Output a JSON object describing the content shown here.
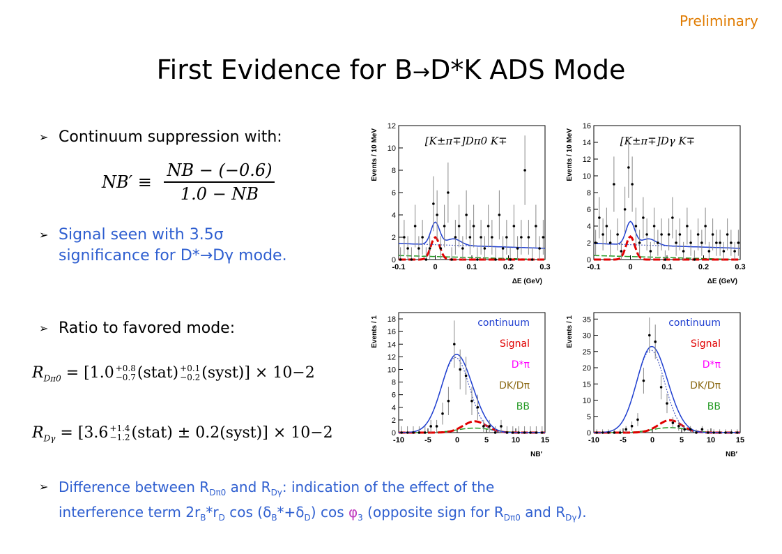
{
  "preliminary": "Preliminary",
  "title": {
    "prefix": "First Evidence for B",
    "arrow": "→",
    "suffix": "D*K ADS Mode"
  },
  "bullet_marker": "➢",
  "bullets": {
    "continuum": "Continuum suppression with:",
    "signal_line1": "Signal seen with 3.5σ",
    "signal_line2_a": "significance for D*",
    "signal_line2_arrow": "→",
    "signal_line2_b": "Dγ mode.",
    "ratio": "Ratio to favored mode:"
  },
  "formula": {
    "lhs": "NB′ ≡",
    "numerator": "NB − (−0.6)",
    "denominator": "1.0 − NB"
  },
  "ratios": [
    {
      "symbol": "R",
      "sub": "Dπ0",
      "value": "1.0",
      "stat_up": "+0.8",
      "stat_down": "−0.7",
      "stat": "(stat)",
      "syst_up": "+0.1",
      "syst_down": "−0.2",
      "syst": "(syst)",
      "scale": "× 10−2"
    },
    {
      "symbol": "R",
      "sub": "Dγ",
      "value": "3.6",
      "stat_up": "+1.4",
      "stat_down": "−1.2",
      "stat": "(stat)",
      "syst_sym": "± 0.2",
      "syst": "(syst)",
      "scale": "× 10−2"
    }
  ],
  "bottom": {
    "l1a": "Difference between R",
    "l1s1": "Dπ0",
    "l1b": " and R",
    "l1s2": "Dγ",
    "l1c": ": indication of the effect of the",
    "l2a": "interference term 2r",
    "l2s1": "B",
    "l2b": "*r",
    "l2s2": "D",
    "l2c": " cos (δ",
    "l2s3": "B",
    "l2d": "*+δ",
    "l2s4": "D",
    "l2e": ") cos ",
    "l2phi": "φ",
    "l2s5": "3",
    "l2f": " (opposite sign for R",
    "l2s6": "Dπ0",
    "l2g": " and R",
    "l2s7": "Dγ",
    "l2h": ")."
  },
  "legend": {
    "continuum": "continuum",
    "signal": "Signal",
    "dstarpi": "D*π",
    "dkdpi": "DK/Dπ",
    "bb": "BB"
  },
  "colors": {
    "accent": "#2f5fd0",
    "orange": "#e07b00",
    "signal": "#e00000",
    "dstarpi": "#ff00ff",
    "dkdpi": "#8b6914",
    "bb": "#229922",
    "fit": "#1f3fd0"
  },
  "chart_data": [
    {
      "type": "scatter",
      "title": "[K±π∓]Dπ0 K∓",
      "xlabel": "ΔE (GeV)",
      "ylabel": "Events / 10 MeV",
      "xlim": [
        -0.1,
        0.3
      ],
      "ylim": [
        0,
        12
      ],
      "xticks": [
        "-0.1",
        "0",
        "0.1",
        "0.2",
        "0.3"
      ],
      "yticks": [
        "0",
        "2",
        "4",
        "6",
        "8",
        "10",
        "12"
      ],
      "x": [
        -0.095,
        -0.085,
        -0.075,
        -0.065,
        -0.055,
        -0.045,
        -0.035,
        -0.025,
        -0.015,
        -0.005,
        0.005,
        0.015,
        0.025,
        0.035,
        0.045,
        0.055,
        0.065,
        0.075,
        0.085,
        0.095,
        0.105,
        0.115,
        0.125,
        0.135,
        0.145,
        0.155,
        0.165,
        0.175,
        0.185,
        0.195,
        0.205,
        0.215,
        0.225,
        0.235,
        0.245,
        0.255,
        0.265,
        0.275,
        0.285,
        0.295
      ],
      "y": [
        0,
        2,
        1,
        0,
        3,
        1,
        2,
        0,
        1,
        5,
        4,
        1,
        3,
        6,
        0,
        2,
        3,
        1,
        4,
        2,
        3,
        0,
        2,
        1,
        3,
        2,
        0,
        4,
        1,
        2,
        0,
        3,
        1,
        2,
        8,
        2,
        0,
        3,
        1,
        2
      ]
    },
    {
      "type": "scatter",
      "title": "[K±π∓]Dγ K∓",
      "xlabel": "ΔE (GeV)",
      "ylabel": "Events / 10 MeV",
      "xlim": [
        -0.1,
        0.3
      ],
      "ylim": [
        0,
        16
      ],
      "xticks": [
        "-0.1",
        "0",
        "0.1",
        "0.2",
        "0.3"
      ],
      "yticks": [
        "0",
        "2",
        "4",
        "6",
        "8",
        "10",
        "12",
        "14",
        "16"
      ],
      "x": [
        -0.095,
        -0.085,
        -0.075,
        -0.065,
        -0.055,
        -0.045,
        -0.035,
        -0.025,
        -0.015,
        -0.005,
        0.005,
        0.015,
        0.025,
        0.035,
        0.045,
        0.055,
        0.065,
        0.075,
        0.085,
        0.095,
        0.105,
        0.115,
        0.125,
        0.135,
        0.145,
        0.155,
        0.165,
        0.175,
        0.185,
        0.195,
        0.205,
        0.215,
        0.225,
        0.235,
        0.245,
        0.255,
        0.265,
        0.275,
        0.285,
        0.295
      ],
      "y": [
        2,
        5,
        3,
        4,
        2,
        9,
        3,
        1,
        6,
        11,
        9,
        4,
        2,
        5,
        3,
        1,
        4,
        2,
        3,
        0,
        3,
        5,
        2,
        3,
        1,
        4,
        2,
        0,
        3,
        2,
        4,
        1,
        3,
        2,
        2,
        1,
        3,
        2,
        1,
        2
      ]
    },
    {
      "type": "scatter",
      "xlabel": "NB′",
      "ylabel": "Events / 1",
      "xlim": [
        -10,
        15
      ],
      "ylim": [
        0,
        19
      ],
      "xticks": [
        "-10",
        "-5",
        "0",
        "5",
        "10",
        "15"
      ],
      "yticks": [
        "0",
        "2",
        "4",
        "6",
        "8",
        "10",
        "12",
        "14",
        "16",
        "18"
      ],
      "x": [
        -9.5,
        -8.5,
        -7.5,
        -6.5,
        -5.5,
        -4.5,
        -3.5,
        -2.5,
        -1.5,
        -0.5,
        0.5,
        1.5,
        2.5,
        3.5,
        4.5,
        5.5,
        6.5,
        7.5,
        8.5,
        9.5,
        10.5,
        11.5,
        12.5,
        13.5,
        14.5
      ],
      "y": [
        0,
        0,
        0,
        0,
        0,
        1,
        1,
        3,
        5,
        14,
        10,
        9,
        5,
        4,
        1,
        1,
        0,
        1,
        0,
        0,
        0,
        0,
        0,
        0,
        0
      ]
    },
    {
      "type": "scatter",
      "xlabel": "NB′",
      "ylabel": "Events / 1",
      "xlim": [
        -10,
        15
      ],
      "ylim": [
        0,
        37
      ],
      "xticks": [
        "-10",
        "-5",
        "0",
        "5",
        "10",
        "15"
      ],
      "yticks": [
        "0",
        "5",
        "10",
        "15",
        "20",
        "25",
        "30",
        "35"
      ],
      "x": [
        -9.5,
        -8.5,
        -7.5,
        -6.5,
        -5.5,
        -4.5,
        -3.5,
        -2.5,
        -1.5,
        -0.5,
        0.5,
        1.5,
        2.5,
        3.5,
        4.5,
        5.5,
        6.5,
        7.5,
        8.5,
        9.5,
        10.5,
        11.5,
        12.5,
        13.5,
        14.5
      ],
      "y": [
        0,
        0,
        0,
        0,
        0,
        1,
        2,
        4,
        16,
        30,
        28,
        14,
        9,
        3,
        2,
        1,
        1,
        0,
        1,
        0,
        0,
        0,
        0,
        0,
        0
      ]
    }
  ]
}
